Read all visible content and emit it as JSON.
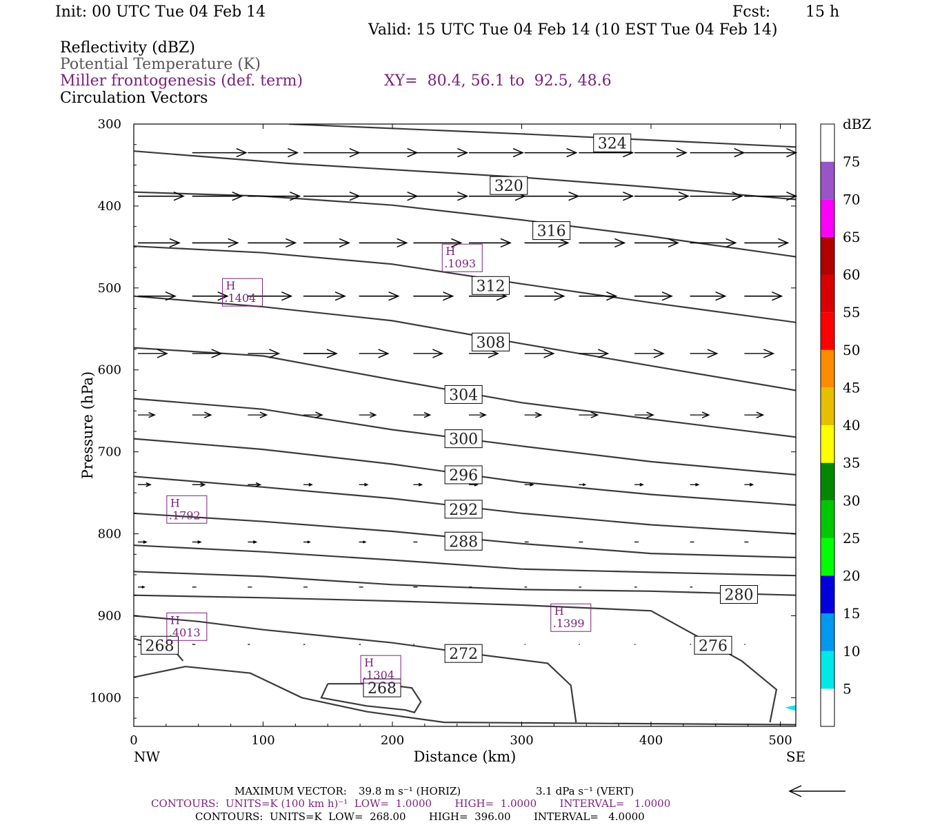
{
  "header": {
    "init": "Init: 00 UTC Tue 04 Feb 14",
    "fcst_label": "Fcst:",
    "fcst_value": "15 h",
    "valid": "Valid: 15 UTC Tue 04 Feb 14 (10 EST Tue 04 Feb 14)"
  },
  "fields": {
    "reflectivity": "Reflectivity (dBZ)",
    "potential_temperature": "Potential Temperature (K)",
    "frontogenesis": "Miller frontogenesis (def. term)",
    "cross_section": "XY=  80.4, 56.1 to  92.5, 48.6",
    "vectors": "Circulation Vectors"
  },
  "footer": {
    "max_vector_label": "MAXIMUM VECTOR:",
    "max_vector_horiz": "39.8 m s⁻¹ (HORIZ)",
    "max_vector_vert": "3.1 dPa s⁻¹ (VERT)",
    "contours_front": "CONTOURS:  UNITS=K (100 km h)⁻¹  LOW=  1.0000       HIGH=  1.0000       INTERVAL=   1.0000",
    "contours_theta": "CONTOURS:  UNITS=K  LOW=  268.00       HIGH=  396.00       INTERVAL=   4.0000"
  },
  "colors": {
    "theta": "#3a3a3a",
    "frontogenesis": "#7b1f7b",
    "vectors": "#000000"
  },
  "chart_data": {
    "type": "line",
    "xlabel": "Distance (km)",
    "ylabel": "Pressure (hPa)",
    "xlim": [
      0,
      512
    ],
    "ylim": [
      1035,
      300
    ],
    "x_ticks": [
      0,
      100,
      200,
      300,
      400,
      500
    ],
    "y_ticks": [
      300,
      400,
      500,
      600,
      700,
      800,
      900,
      1000
    ],
    "x_end_labels": [
      "NW",
      "SE"
    ],
    "theta_contours": [
      {
        "level": "324",
        "label_at": [
          370,
          323
        ],
        "points": [
          [
            120,
            300
          ],
          [
            300,
            312
          ],
          [
            512,
            328
          ]
        ]
      },
      {
        "level": "320",
        "label_at": [
          290,
          375
        ],
        "points": [
          [
            0,
            333
          ],
          [
            120,
            348
          ],
          [
            300,
            365
          ],
          [
            400,
            377
          ],
          [
            512,
            392
          ]
        ]
      },
      {
        "level": "",
        "points": [
          [
            0,
            383
          ],
          [
            100,
            388
          ],
          [
            200,
            399
          ],
          [
            300,
            417
          ],
          [
            400,
            437
          ],
          [
            512,
            462
          ]
        ]
      },
      {
        "level": "316",
        "label_at": [
          323,
          430
        ],
        "points": []
      },
      {
        "level": "312",
        "label_at": [
          276,
          497
        ],
        "points": [
          [
            0,
            449
          ],
          [
            100,
            457
          ],
          [
            200,
            471
          ],
          [
            300,
            495
          ],
          [
            400,
            518
          ],
          [
            512,
            542
          ]
        ]
      },
      {
        "level": "308",
        "label_at": [
          276,
          566
        ],
        "points": [
          [
            0,
            510
          ],
          [
            100,
            523
          ],
          [
            200,
            540
          ],
          [
            300,
            568
          ],
          [
            400,
            595
          ],
          [
            512,
            625
          ]
        ]
      },
      {
        "level": "304",
        "label_at": [
          255,
          630
        ],
        "points": [
          [
            0,
            573
          ],
          [
            100,
            583
          ],
          [
            200,
            612
          ],
          [
            300,
            640
          ],
          [
            400,
            660
          ],
          [
            512,
            682
          ]
        ]
      },
      {
        "level": "300",
        "label_at": [
          255,
          684
        ],
        "points": [
          [
            0,
            635
          ],
          [
            100,
            648
          ],
          [
            200,
            673
          ],
          [
            300,
            693
          ],
          [
            400,
            712
          ],
          [
            512,
            728
          ]
        ]
      },
      {
        "level": "296",
        "label_at": [
          255,
          728
        ],
        "points": [
          [
            0,
            684
          ],
          [
            100,
            697
          ],
          [
            200,
            715
          ],
          [
            300,
            737
          ],
          [
            400,
            752
          ],
          [
            512,
            765
          ]
        ]
      },
      {
        "level": "292",
        "label_at": [
          255,
          770
        ],
        "points": [
          [
            0,
            730
          ],
          [
            100,
            743
          ],
          [
            200,
            757
          ],
          [
            300,
            775
          ],
          [
            400,
            789
          ],
          [
            512,
            800
          ]
        ]
      },
      {
        "level": "288",
        "label_at": [
          255,
          809
        ],
        "points": [
          [
            0,
            775
          ],
          [
            100,
            785
          ],
          [
            200,
            797
          ],
          [
            300,
            812
          ],
          [
            400,
            824
          ],
          [
            512,
            829
          ]
        ]
      },
      {
        "level": "",
        "points": [
          [
            0,
            814
          ],
          [
            100,
            822
          ],
          [
            200,
            832
          ],
          [
            300,
            843
          ],
          [
            400,
            847
          ],
          [
            512,
            851
          ]
        ]
      },
      {
        "level": "280",
        "label_at": [
          468,
          874
        ],
        "points": [
          [
            0,
            846
          ],
          [
            100,
            852
          ],
          [
            200,
            862
          ],
          [
            300,
            868
          ],
          [
            400,
            870
          ],
          [
            512,
            875
          ]
        ]
      },
      {
        "level": "276",
        "label_at": [
          448,
          936
        ],
        "points": [
          [
            0,
            875
          ],
          [
            100,
            878
          ],
          [
            200,
            882
          ],
          [
            300,
            887
          ],
          [
            400,
            894
          ],
          [
            430,
            920
          ],
          [
            470,
            955
          ],
          [
            497,
            990
          ],
          [
            492,
            1030
          ]
        ]
      },
      {
        "level": "272",
        "label_at": [
          255,
          946
        ],
        "points": [
          [
            0,
            900
          ],
          [
            50,
            907
          ],
          [
            100,
            917
          ],
          [
            200,
            933
          ],
          [
            260,
            946
          ],
          [
            320,
            958
          ],
          [
            338,
            985
          ],
          [
            342,
            1030
          ]
        ]
      },
      {
        "level": "268",
        "label_at": [
          20,
          936
        ],
        "points": [
          [
            0,
            928
          ],
          [
            30,
            940
          ],
          [
            38,
            955
          ]
        ]
      },
      {
        "level": "",
        "points": [
          [
            0,
            975
          ],
          [
            40,
            962
          ],
          [
            90,
            970
          ],
          [
            130,
            1000
          ],
          [
            180,
            1017
          ],
          [
            240,
            1030
          ],
          [
            512,
            1033
          ]
        ]
      },
      {
        "level": "268",
        "label_at": [
          192,
          988
        ],
        "points": [
          [
            150,
            983
          ],
          [
            145,
            1000
          ],
          [
            180,
            1010
          ],
          [
            210,
            1015
          ],
          [
            217,
            1018
          ],
          [
            222,
            1005
          ],
          [
            215,
            988
          ],
          [
            190,
            983
          ],
          [
            150,
            983
          ]
        ]
      }
    ],
    "frontogenesis_maxima": [
      {
        "label": "H",
        "value": ".1093",
        "x": 254,
        "p": 465
      },
      {
        "label": "H",
        "value": ".1404",
        "x": 84,
        "p": 507
      },
      {
        "label": "H",
        "value": ".1792",
        "x": 41,
        "p": 772
      },
      {
        "label": "H",
        "value": ".4013",
        "x": 41,
        "p": 915
      },
      {
        "label": "H",
        "value": ".1304",
        "x": 191,
        "p": 967
      },
      {
        "label": "H",
        "value": ".1399",
        "x": 338,
        "p": 904
      }
    ],
    "reflectivity_scale": {
      "unit": "dBZ",
      "levels": [
        "5",
        "10",
        "15",
        "20",
        "25",
        "30",
        "35",
        "40",
        "45",
        "50",
        "55",
        "60",
        "65",
        "70",
        "75"
      ],
      "colors": [
        "#ffffff",
        "#00e8e8",
        "#0099ee",
        "#0000dd",
        "#00ff00",
        "#00c800",
        "#008800",
        "#ffff00",
        "#e6c000",
        "#ff8c00",
        "#ff0000",
        "#d80000",
        "#b00000",
        "#ff00ff",
        "#9955c8",
        "#ffffff"
      ]
    },
    "vectors": {
      "x_columns": [
        0,
        42,
        85,
        128,
        171,
        213,
        256,
        299,
        341,
        384,
        427,
        469
      ],
      "rows": [
        {
          "p": 335,
          "u": [
            0,
            2.6,
            2.4,
            2.7,
            2.8,
            2.6,
            2.6,
            2.5,
            2.6,
            2.5,
            2.6,
            2.5
          ]
        },
        {
          "p": 388,
          "u": [
            2.2,
            2.4,
            2.5,
            2.7,
            2.8,
            2.6,
            2.7,
            2.6,
            2.6,
            2.6,
            2.5,
            2.5
          ]
        },
        {
          "p": 445,
          "u": [
            2.0,
            2.2,
            2.3,
            2.2,
            2.3,
            2.3,
            2.0,
            2.1,
            2.2,
            2.1,
            2.2,
            2.1
          ]
        },
        {
          "p": 510,
          "u": [
            1.8,
            1.7,
            2.1,
            2.0,
            1.9,
            1.9,
            1.8,
            1.9,
            1.8,
            1.8,
            1.7,
            1.8
          ]
        },
        {
          "p": 580,
          "u": [
            1.4,
            1.4,
            1.5,
            1.6,
            1.4,
            1.4,
            1.4,
            1.4,
            1.4,
            1.4,
            1.3,
            1.4
          ]
        },
        {
          "p": 655,
          "u": [
            0.8,
            0.9,
            0.9,
            0.9,
            0.8,
            0.8,
            0.8,
            0.8,
            0.9,
            0.9,
            0.9,
            0.9
          ]
        },
        {
          "p": 740,
          "u": [
            0.6,
            0.6,
            0.6,
            0.4,
            0.4,
            0.4,
            0.4,
            0.4,
            0.3,
            0.4,
            0.4,
            0.4
          ]
        },
        {
          "p": 810,
          "u": [
            0.4,
            0.4,
            0.4,
            0.3,
            0.3,
            0.2,
            0.2,
            0.2,
            0.2,
            0.2,
            0.2,
            0.2
          ]
        },
        {
          "p": 865,
          "u": [
            0.3,
            0.2,
            0.2,
            0.2,
            0.2,
            0.2,
            0.15,
            0.12,
            0.12,
            0.12,
            0.12,
            0.12
          ]
        },
        {
          "p": 935,
          "u": [
            0.2,
            0.15,
            0.1,
            0.08,
            0.08,
            0.05,
            0.05,
            0.05,
            0.05,
            0.05,
            0.05,
            0.05
          ]
        }
      ]
    }
  }
}
